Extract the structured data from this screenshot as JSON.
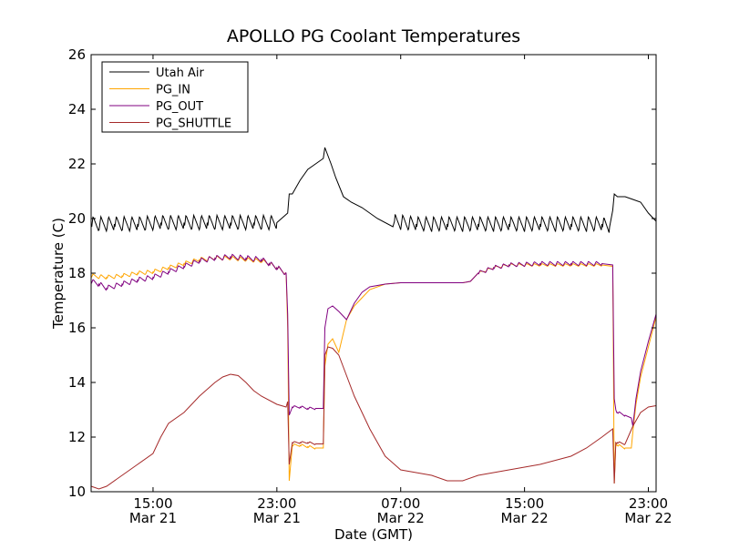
{
  "chart_data": {
    "type": "line",
    "title": "APOLLO PG Coolant Temperatures",
    "xlabel": "Date (GMT)",
    "ylabel": "Temperature (C)",
    "xlim": [
      11.0,
      47.5
    ],
    "ylim": [
      10,
      26
    ],
    "x_unit": "hours since Mar 21 00:00 GMT",
    "y_ticks": [
      10,
      12,
      14,
      16,
      18,
      20,
      22,
      24,
      26
    ],
    "x_ticks": [
      {
        "x": 15,
        "time": "15:00",
        "date": "Mar 21"
      },
      {
        "x": 23,
        "time": "23:00",
        "date": "Mar 21"
      },
      {
        "x": 31,
        "time": "07:00",
        "date": "Mar 22"
      },
      {
        "x": 39,
        "time": "15:00",
        "date": "Mar 22"
      },
      {
        "x": 47,
        "time": "23:00",
        "date": "Mar 22"
      }
    ],
    "legend_position": "top-left",
    "series": [
      {
        "name": "Utah Air",
        "color": "#000000",
        "x": [
          11.0,
          12.5,
          14.0,
          15.5,
          17.0,
          18.5,
          20.0,
          21.5,
          23.0,
          23.7,
          23.8,
          24.0,
          24.5,
          25.0,
          25.5,
          26.0,
          26.1,
          26.5,
          26.8,
          27.3,
          27.8,
          28.5,
          29.5,
          30.5,
          30.6,
          32.0,
          34.0,
          36.0,
          38.0,
          40.0,
          42.0,
          44.0,
          44.5,
          44.7,
          44.8,
          45.0,
          45.5,
          46.0,
          46.5,
          47.0,
          47.5
        ],
        "y": [
          19.8,
          19.8,
          19.8,
          19.85,
          19.85,
          19.85,
          19.85,
          19.85,
          19.85,
          20.2,
          20.9,
          20.9,
          21.4,
          21.8,
          22.0,
          22.2,
          22.6,
          22.0,
          21.5,
          20.8,
          20.6,
          20.4,
          20.0,
          19.7,
          19.9,
          19.8,
          19.8,
          19.8,
          19.8,
          19.8,
          19.8,
          19.8,
          19.7,
          20.3,
          20.9,
          20.8,
          20.8,
          20.7,
          20.6,
          20.2,
          19.9
        ],
        "osc_amp": [
          0.28,
          0.28,
          0.28,
          0.28,
          0.28,
          0.28,
          0.28,
          0.28,
          0.28,
          0,
          0,
          0,
          0,
          0,
          0,
          0,
          0,
          0,
          0,
          0,
          0,
          0,
          0,
          0,
          0.28,
          0.28,
          0.28,
          0.28,
          0.28,
          0.28,
          0.28,
          0.28,
          0.28,
          0,
          0,
          0,
          0,
          0,
          0,
          0,
          0
        ]
      },
      {
        "name": "PG_IN",
        "color": "#ffa500",
        "x": [
          11.0,
          12.0,
          13.0,
          14.0,
          15.0,
          16.0,
          17.0,
          18.0,
          19.0,
          20.0,
          21.0,
          22.0,
          22.5,
          23.0,
          23.6,
          23.7,
          23.8,
          24.0,
          24.5,
          25.0,
          25.5,
          26.0,
          26.1,
          26.3,
          26.6,
          27.0,
          27.5,
          28.0,
          28.5,
          29.0,
          30.0,
          31.0,
          33.0,
          35.0,
          35.5,
          36.0,
          37.0,
          38.0,
          40.0,
          42.0,
          44.0,
          44.7,
          44.8,
          44.9,
          45.0,
          45.5,
          45.9,
          46.0,
          46.2,
          46.5,
          47.0,
          47.5
        ],
        "y": [
          17.9,
          17.85,
          17.9,
          18.0,
          18.05,
          18.2,
          18.35,
          18.5,
          18.55,
          18.55,
          18.5,
          18.45,
          18.35,
          18.2,
          18.0,
          16.0,
          10.4,
          11.7,
          11.7,
          11.65,
          11.6,
          11.6,
          14.6,
          15.4,
          15.6,
          15.1,
          16.3,
          16.8,
          17.1,
          17.4,
          17.6,
          17.65,
          17.65,
          17.65,
          17.7,
          18.0,
          18.2,
          18.3,
          18.3,
          18.3,
          18.3,
          18.25,
          10.3,
          11.8,
          11.7,
          11.6,
          11.6,
          12.2,
          13.2,
          14.2,
          15.3,
          16.4
        ],
        "osc_amp": [
          0.08,
          0.08,
          0.08,
          0.08,
          0.08,
          0.08,
          0.08,
          0.08,
          0.08,
          0.08,
          0.08,
          0.08,
          0.08,
          0.08,
          0.08,
          0,
          0,
          0.05,
          0.05,
          0.05,
          0.05,
          0,
          0,
          0,
          0,
          0,
          0,
          0,
          0,
          0,
          0,
          0,
          0,
          0,
          0,
          0.05,
          0.05,
          0.05,
          0.05,
          0.05,
          0.05,
          0,
          0,
          0.05,
          0.05,
          0.05,
          0,
          0,
          0,
          0,
          0,
          0
        ]
      },
      {
        "name": "PG_OUT",
        "color": "#800080",
        "x": [
          11.0,
          11.5,
          12.0,
          13.0,
          14.0,
          15.0,
          16.0,
          17.0,
          18.0,
          19.0,
          20.0,
          21.0,
          22.0,
          22.5,
          23.0,
          23.6,
          23.7,
          23.8,
          24.0,
          24.5,
          25.0,
          25.5,
          26.0,
          26.1,
          26.3,
          26.6,
          27.0,
          27.5,
          28.0,
          28.5,
          29.0,
          30.0,
          31.0,
          33.0,
          35.0,
          35.5,
          36.0,
          37.0,
          38.0,
          40.0,
          42.0,
          44.0,
          44.7,
          44.8,
          44.9,
          45.0,
          45.5,
          45.9,
          46.0,
          46.2,
          46.5,
          47.0,
          47.5
        ],
        "y": [
          17.7,
          17.6,
          17.45,
          17.6,
          17.75,
          17.85,
          18.05,
          18.25,
          18.45,
          18.55,
          18.6,
          18.55,
          18.5,
          18.35,
          18.2,
          18.0,
          16.5,
          12.8,
          13.1,
          13.1,
          13.05,
          13.05,
          13.05,
          16.0,
          16.7,
          16.8,
          16.6,
          16.3,
          16.9,
          17.3,
          17.5,
          17.6,
          17.65,
          17.65,
          17.65,
          17.7,
          18.0,
          18.2,
          18.3,
          18.35,
          18.35,
          18.35,
          18.3,
          13.4,
          13.0,
          12.9,
          12.8,
          12.7,
          12.4,
          13.4,
          14.4,
          15.5,
          16.5
        ],
        "osc_amp": [
          0.1,
          0.1,
          0.1,
          0.1,
          0.1,
          0.1,
          0.1,
          0.1,
          0.1,
          0.1,
          0.1,
          0.1,
          0.1,
          0.1,
          0.1,
          0.1,
          0,
          0,
          0.05,
          0.05,
          0.05,
          0.05,
          0,
          0,
          0,
          0,
          0,
          0,
          0,
          0,
          0,
          0,
          0,
          0,
          0,
          0,
          0.08,
          0.08,
          0.08,
          0.08,
          0.08,
          0.08,
          0,
          0,
          0.05,
          0.05,
          0.05,
          0,
          0,
          0,
          0,
          0,
          0
        ]
      },
      {
        "name": "PG_SHUTTLE",
        "color": "#a52a2a",
        "x": [
          11.0,
          11.5,
          12.0,
          13.0,
          14.0,
          15.0,
          15.5,
          16.0,
          17.0,
          18.0,
          19.0,
          19.5,
          20.0,
          20.5,
          21.0,
          21.5,
          22.0,
          23.0,
          23.6,
          23.7,
          23.8,
          24.0,
          24.5,
          25.0,
          25.5,
          26.0,
          26.1,
          26.3,
          26.6,
          27.0,
          28.0,
          29.0,
          30.0,
          31.0,
          32.0,
          33.0,
          34.0,
          35.0,
          36.0,
          38.0,
          40.0,
          42.0,
          43.0,
          44.0,
          44.7,
          44.8,
          44.9,
          45.0,
          45.5,
          46.0,
          46.5,
          47.0,
          47.5
        ],
        "y": [
          10.2,
          10.1,
          10.2,
          10.6,
          11.0,
          11.4,
          12.0,
          12.5,
          12.9,
          13.5,
          14.0,
          14.2,
          14.3,
          14.25,
          14.0,
          13.7,
          13.5,
          13.2,
          13.1,
          13.3,
          11.0,
          11.8,
          11.8,
          11.8,
          11.75,
          11.75,
          15.0,
          15.3,
          15.25,
          15.0,
          13.5,
          12.3,
          11.3,
          10.8,
          10.7,
          10.6,
          10.4,
          10.4,
          10.6,
          10.8,
          11.0,
          11.3,
          11.6,
          12.0,
          12.3,
          10.3,
          11.8,
          11.8,
          11.75,
          12.4,
          12.9,
          13.1,
          13.15
        ],
        "osc_amp": [
          0,
          0,
          0,
          0,
          0,
          0,
          0,
          0,
          0,
          0,
          0,
          0,
          0,
          0,
          0,
          0,
          0,
          0,
          0,
          0,
          0,
          0.04,
          0.04,
          0.04,
          0.04,
          0,
          0,
          0,
          0,
          0,
          0,
          0,
          0,
          0,
          0,
          0,
          0,
          0,
          0,
          0,
          0,
          0,
          0,
          0,
          0,
          0,
          0.04,
          0.04,
          0.04,
          0,
          0,
          0,
          0
        ]
      }
    ]
  }
}
